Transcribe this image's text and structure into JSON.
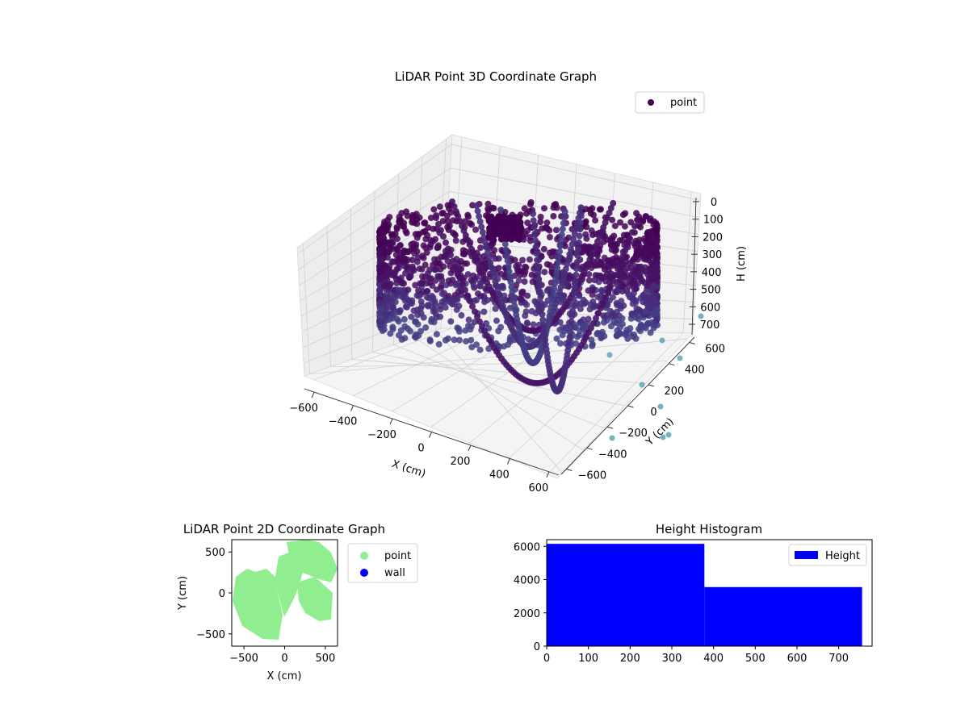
{
  "chart_data": [
    {
      "type": "scatter",
      "projection": "3d",
      "title": "LiDAR Point 3D Coordinate Graph",
      "xlabel": "X (cm)",
      "ylabel": "Y (cm)",
      "zlabel": "H (cm)",
      "xticks": [
        "−600",
        "−400",
        "−200",
        "0",
        "200",
        "400",
        "600"
      ],
      "yticks": [
        "−600",
        "−400",
        "−200",
        "0",
        "200",
        "400",
        "600"
      ],
      "zticks": [
        "0",
        "100",
        "200",
        "300",
        "400",
        "500",
        "600",
        "700"
      ],
      "xlim": [
        -650,
        650
      ],
      "ylim": [
        -650,
        650
      ],
      "zlim": [
        0,
        760
      ],
      "z_inverted": true,
      "colormap": "viridis",
      "legend": {
        "position": "top-right",
        "entries": [
          {
            "label": "point",
            "color": "#440154"
          }
        ]
      },
      "grid": true
    },
    {
      "type": "scatter",
      "title": "LiDAR Point 2D Coordinate Graph",
      "xlabel": "X (cm)",
      "ylabel": "Y (cm)",
      "xticks": [
        "−500",
        "0",
        "500"
      ],
      "yticks": [
        "500",
        "0",
        "−500"
      ],
      "xlim": [
        -650,
        650
      ],
      "ylim": [
        -650,
        650
      ],
      "series": [
        {
          "name": "point",
          "color": "#90ee90"
        },
        {
          "name": "wall",
          "color": "#0000ff"
        }
      ],
      "legend": {
        "position": "outside-right"
      }
    },
    {
      "type": "bar",
      "title": "Height Histogram",
      "xticks": [
        "0",
        "100",
        "200",
        "300",
        "400",
        "500",
        "600",
        "700"
      ],
      "yticks": [
        "0",
        "2000",
        "4000",
        "6000"
      ],
      "xlim": [
        0,
        780
      ],
      "ylim": [
        0,
        6400
      ],
      "bins": [
        {
          "x0": 0,
          "x1": 378,
          "count": 6150
        },
        {
          "x0": 378,
          "x1": 756,
          "count": 3550
        }
      ],
      "color": "#0000ff",
      "legend": {
        "position": "top-right",
        "entries": [
          {
            "label": "Height",
            "color": "#0000ff"
          }
        ]
      }
    }
  ]
}
